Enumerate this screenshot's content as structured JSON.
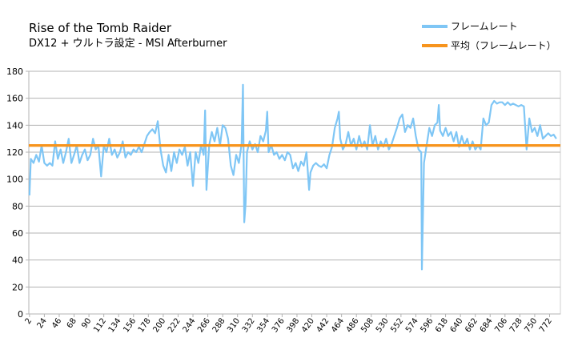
{
  "chart_data": {
    "type": "line",
    "title": "Rise of the Tomb Raider",
    "subtitle": "DX12 + ウルトラ設定  - MSI Afterburner",
    "x": [
      2,
      4,
      8,
      12,
      16,
      20,
      24,
      28,
      32,
      36,
      40,
      44,
      48,
      52,
      56,
      60,
      64,
      68,
      72,
      76,
      80,
      84,
      88,
      92,
      96,
      100,
      104,
      108,
      112,
      116,
      120,
      124,
      128,
      132,
      136,
      140,
      144,
      148,
      152,
      156,
      160,
      164,
      168,
      172,
      176,
      180,
      184,
      188,
      192,
      196,
      200,
      204,
      208,
      212,
      216,
      220,
      224,
      228,
      232,
      236,
      240,
      244,
      248,
      252,
      256,
      260,
      262,
      264,
      268,
      272,
      276,
      280,
      284,
      288,
      292,
      296,
      300,
      304,
      308,
      312,
      316,
      318,
      320,
      322,
      324,
      328,
      332,
      336,
      340,
      344,
      348,
      352,
      354,
      356,
      360,
      364,
      368,
      372,
      376,
      380,
      384,
      388,
      392,
      396,
      400,
      404,
      408,
      412,
      416,
      418,
      422,
      426,
      430,
      434,
      438,
      442,
      446,
      450,
      454,
      458,
      460,
      462,
      466,
      470,
      474,
      478,
      482,
      486,
      490,
      494,
      498,
      502,
      506,
      510,
      514,
      518,
      522,
      526,
      530,
      534,
      538,
      542,
      546,
      550,
      554,
      558,
      562,
      566,
      570,
      574,
      578,
      582,
      583,
      586,
      590,
      594,
      598,
      602,
      606,
      608,
      610,
      614,
      618,
      622,
      626,
      630,
      634,
      638,
      642,
      646,
      650,
      654,
      658,
      662,
      666,
      670,
      674,
      678,
      682,
      686,
      690,
      694,
      698,
      702,
      706,
      710,
      714,
      718,
      722,
      726,
      730,
      734,
      738,
      742,
      746,
      750,
      754,
      758,
      762,
      766,
      770,
      774,
      778,
      782
    ],
    "series": [
      {
        "name": "フレームレート",
        "color": "#7fc6f5",
        "values": [
          88,
          115,
          112,
          118,
          113,
          125,
          112,
          110,
          112,
          110,
          128,
          115,
          122,
          112,
          120,
          130,
          112,
          118,
          125,
          112,
          118,
          122,
          114,
          118,
          130,
          122,
          125,
          102,
          125,
          120,
          130,
          118,
          122,
          116,
          120,
          128,
          116,
          120,
          118,
          122,
          120,
          124,
          120,
          126,
          132,
          135,
          137,
          134,
          143,
          122,
          110,
          105,
          118,
          106,
          120,
          112,
          122,
          118,
          124,
          110,
          120,
          95,
          120,
          112,
          125,
          118,
          151,
          92,
          125,
          135,
          128,
          138,
          125,
          140,
          138,
          130,
          110,
          103,
          118,
          112,
          126,
          170,
          68,
          82,
          120,
          128,
          122,
          126,
          120,
          132,
          128,
          136,
          150,
          120,
          125,
          118,
          120,
          115,
          118,
          114,
          120,
          118,
          108,
          112,
          106,
          113,
          110,
          120,
          92,
          105,
          110,
          112,
          110,
          109,
          111,
          108,
          118,
          124,
          138,
          145,
          150,
          130,
          122,
          126,
          135,
          125,
          130,
          122,
          132,
          124,
          128,
          122,
          140,
          125,
          132,
          122,
          128,
          124,
          130,
          122,
          126,
          132,
          138,
          145,
          148,
          135,
          140,
          138,
          145,
          132,
          122,
          120,
          33,
          112,
          125,
          138,
          132,
          140,
          142,
          155,
          136,
          132,
          138,
          132,
          135,
          128,
          135,
          124,
          132,
          125,
          130,
          122,
          128,
          122,
          125,
          122,
          145,
          140,
          142,
          155,
          158,
          156,
          157,
          157,
          155,
          157,
          155,
          156,
          155,
          154,
          155,
          154,
          122,
          145,
          135,
          138,
          132,
          140,
          130,
          132,
          134,
          132,
          133,
          130
        ]
      },
      {
        "name": "平均（フレームレート）",
        "color": "#f7941d",
        "x": [
          1,
          788
        ],
        "values": [
          125,
          125
        ]
      }
    ],
    "xlim": [
      1,
      788
    ],
    "xticks": [
      2,
      24,
      46,
      68,
      90,
      112,
      134,
      156,
      178,
      200,
      222,
      244,
      266,
      288,
      310,
      332,
      354,
      376,
      398,
      420,
      442,
      464,
      486,
      508,
      530,
      552,
      574,
      596,
      618,
      640,
      662,
      684,
      706,
      728,
      750,
      772
    ],
    "ylim": [
      0,
      180
    ],
    "yticks": [
      0,
      20,
      40,
      60,
      80,
      100,
      120,
      140,
      160,
      180
    ],
    "grid": true,
    "legend": "top-right"
  }
}
